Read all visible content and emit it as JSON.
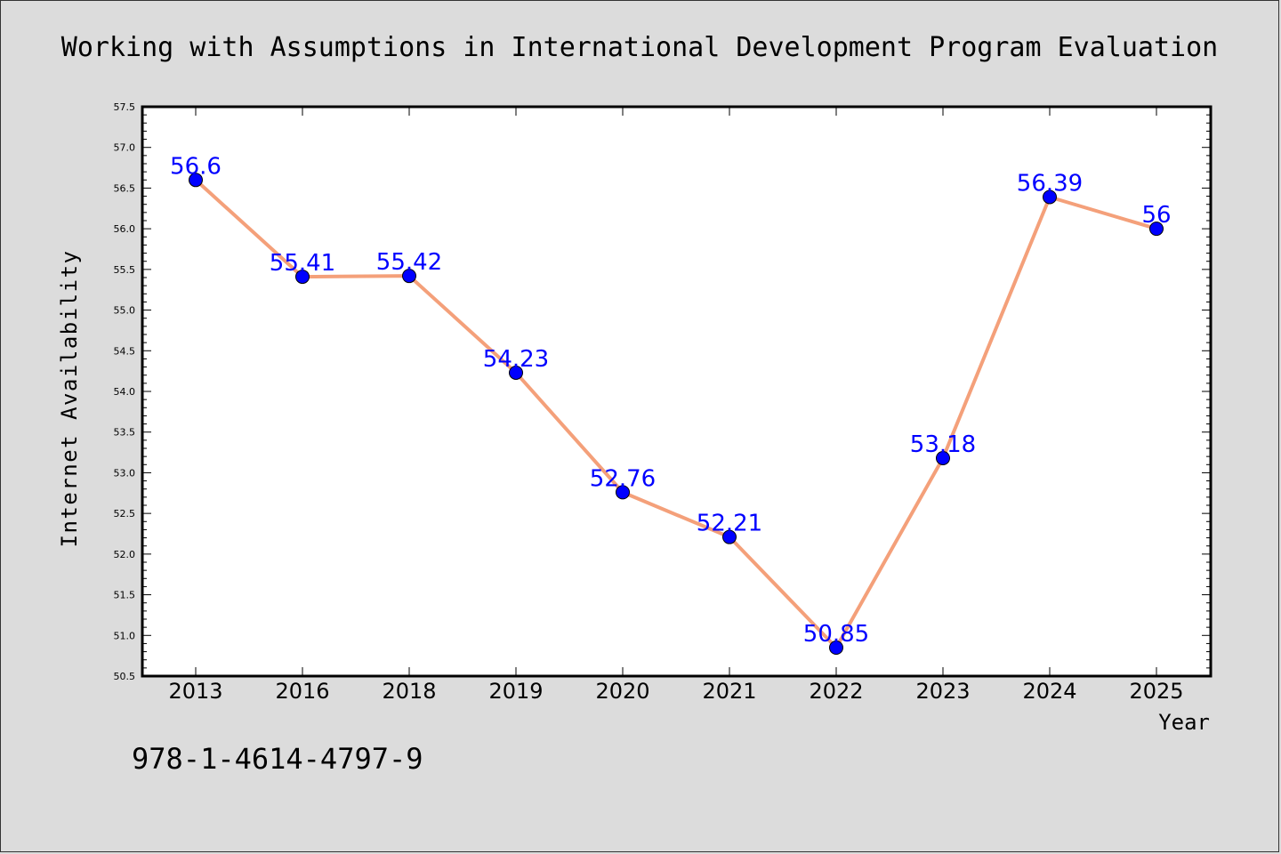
{
  "chart_data": {
    "type": "line",
    "title": "Working with Assumptions in International Development Program Evaluation",
    "xlabel": "Year",
    "ylabel": "Internet Availability",
    "categories": [
      "2013",
      "2016",
      "2018",
      "2019",
      "2020",
      "2021",
      "2022",
      "2023",
      "2024",
      "2025"
    ],
    "series": [
      {
        "values": [
          56.6,
          55.41,
          55.42,
          54.23,
          52.76,
          52.21,
          50.85,
          53.18,
          56.39,
          56.0
        ],
        "labels": [
          "56.6",
          "55.41",
          "55.42",
          "54.23",
          "52.76",
          "52.21",
          "50.85",
          "53.18",
          "56.39",
          "56"
        ]
      }
    ],
    "ylim": [
      50.5,
      57.5
    ],
    "yticks": [
      "50.5",
      "51.0",
      "51.5",
      "52.0",
      "52.5",
      "53.0",
      "53.5",
      "54.0",
      "54.5",
      "55.0",
      "55.5",
      "56.0",
      "56.5",
      "57.0",
      "57.5"
    ],
    "grid": false,
    "colors": {
      "line": "#f4a07a",
      "marker": "#0000ff",
      "label": "#0000ff",
      "background": "#dcdcdc",
      "plot_background": "#ffffff"
    }
  },
  "footer_code": "978-1-4614-4797-9"
}
